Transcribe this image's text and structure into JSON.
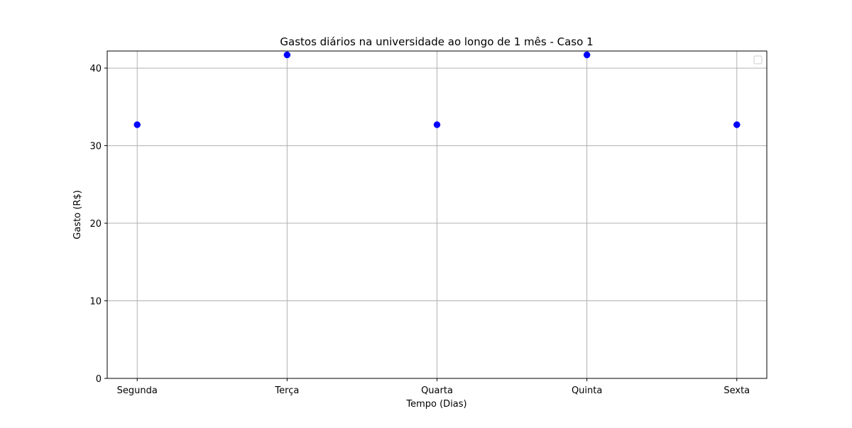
{
  "chart_data": {
    "type": "scatter",
    "title": "Gastos diários na universidade ao longo de 1 mês - Caso 1",
    "xlabel": "Tempo (Dias)",
    "ylabel": "Gasto (R$)",
    "categories": [
      "Segunda",
      "Terça",
      "Quarta",
      "Quinta",
      "Sexta"
    ],
    "series": [
      {
        "values": [
          32.7,
          41.7,
          32.7,
          41.7,
          32.7
        ],
        "color": "#0000ff",
        "marker": "circle"
      }
    ],
    "ylim": [
      0,
      42.2
    ],
    "yticks": [
      0,
      10,
      20,
      30,
      40
    ],
    "grid": true,
    "legend": {
      "placement": "top-right",
      "entries": []
    },
    "colors": {
      "grid": "#b0b0b0",
      "axes": "#000000",
      "marker": "#0000ff"
    }
  }
}
